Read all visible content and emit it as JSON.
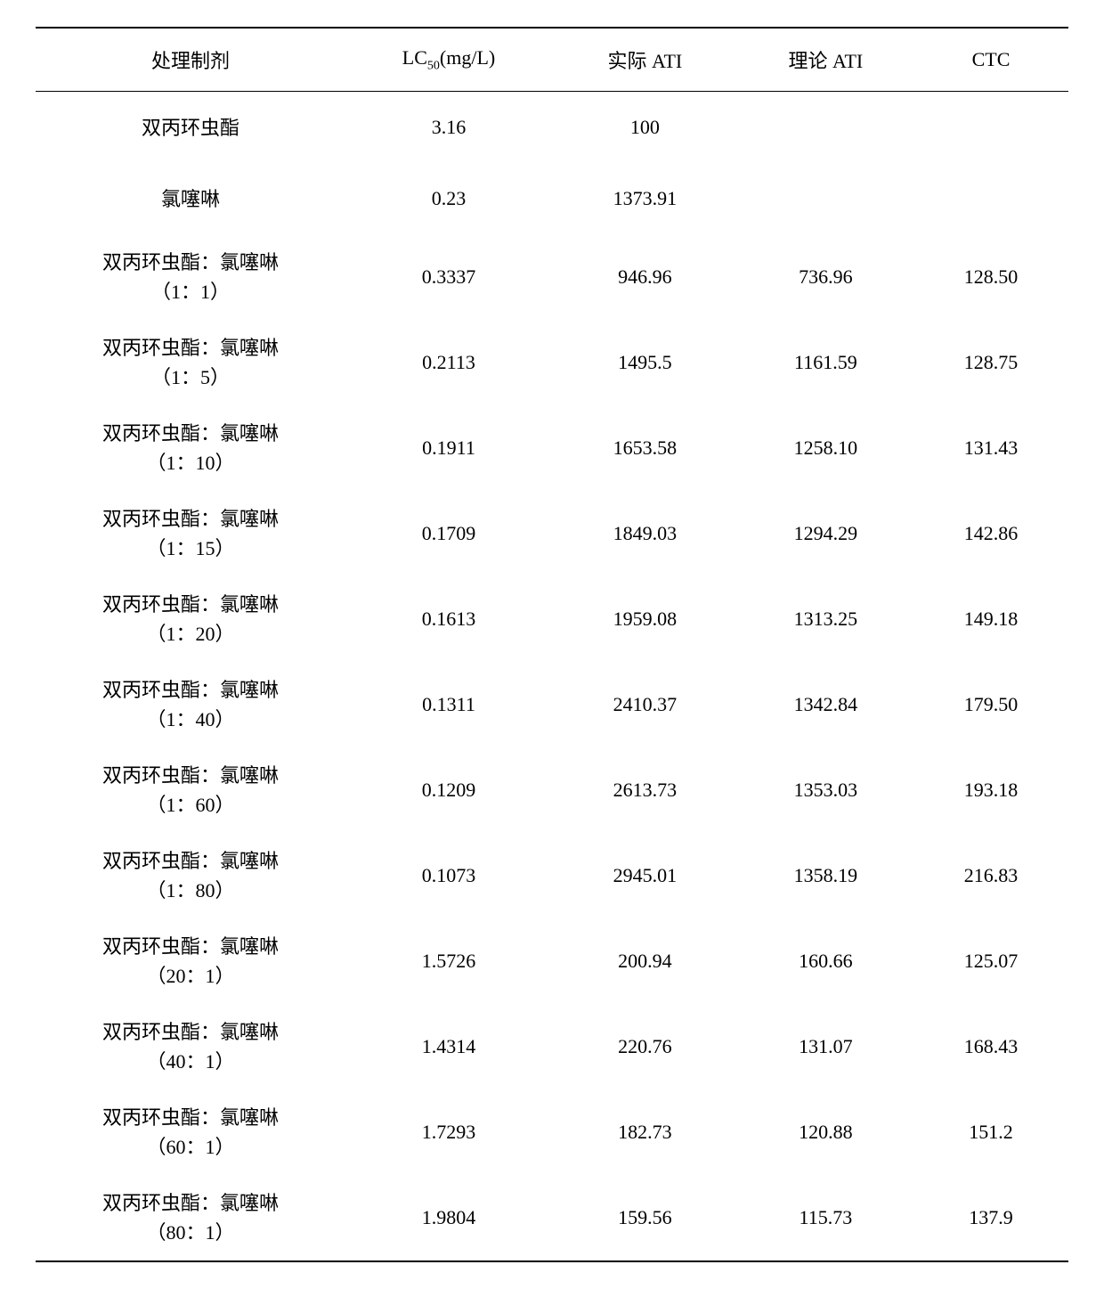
{
  "columns": {
    "agent": "处理制剂",
    "lc50_prefix": "LC",
    "lc50_sub": "50",
    "lc50_suffix": "(mg/L)",
    "actual_ati": "实际 ATI",
    "theoretical_ati": "理论 ATI",
    "ctc": "CTC"
  },
  "rows": [
    {
      "agent_line1": "双丙环虫酯",
      "agent_line2": "",
      "lc50": "3.16",
      "actual_ati": "100",
      "theoretical_ati": "",
      "ctc": "",
      "single": true
    },
    {
      "agent_line1": "氯噻啉",
      "agent_line2": "",
      "lc50": "0.23",
      "actual_ati": "1373.91",
      "theoretical_ati": "",
      "ctc": "",
      "single": true
    },
    {
      "agent_line1": "双丙环虫酯：氯噻啉",
      "agent_line2": "（1：1）",
      "lc50": "0.3337",
      "actual_ati": "946.96",
      "theoretical_ati": "736.96",
      "ctc": "128.50",
      "single": false
    },
    {
      "agent_line1": "双丙环虫酯：氯噻啉",
      "agent_line2": "（1：5）",
      "lc50": "0.2113",
      "actual_ati": "1495.5",
      "theoretical_ati": "1161.59",
      "ctc": "128.75",
      "single": false
    },
    {
      "agent_line1": "双丙环虫酯：氯噻啉",
      "agent_line2": "（1：10）",
      "lc50": "0.1911",
      "actual_ati": "1653.58",
      "theoretical_ati": "1258.10",
      "ctc": "131.43",
      "single": false
    },
    {
      "agent_line1": "双丙环虫酯：氯噻啉",
      "agent_line2": "（1：15）",
      "lc50": "0.1709",
      "actual_ati": "1849.03",
      "theoretical_ati": "1294.29",
      "ctc": "142.86",
      "single": false
    },
    {
      "agent_line1": "双丙环虫酯：氯噻啉",
      "agent_line2": "（1：20）",
      "lc50": "0.1613",
      "actual_ati": "1959.08",
      "theoretical_ati": "1313.25",
      "ctc": "149.18",
      "single": false
    },
    {
      "agent_line1": "双丙环虫酯：氯噻啉",
      "agent_line2": "（1：40）",
      "lc50": "0.1311",
      "actual_ati": "2410.37",
      "theoretical_ati": "1342.84",
      "ctc": "179.50",
      "single": false
    },
    {
      "agent_line1": "双丙环虫酯：氯噻啉",
      "agent_line2": "（1：60）",
      "lc50": "0.1209",
      "actual_ati": "2613.73",
      "theoretical_ati": "1353.03",
      "ctc": "193.18",
      "single": false
    },
    {
      "agent_line1": "双丙环虫酯：氯噻啉",
      "agent_line2": "（1：80）",
      "lc50": "0.1073",
      "actual_ati": "2945.01",
      "theoretical_ati": "1358.19",
      "ctc": "216.83",
      "single": false
    },
    {
      "agent_line1": "双丙环虫酯：氯噻啉",
      "agent_line2": "（20：1）",
      "lc50": "1.5726",
      "actual_ati": "200.94",
      "theoretical_ati": "160.66",
      "ctc": "125.07",
      "single": false
    },
    {
      "agent_line1": "双丙环虫酯：氯噻啉",
      "agent_line2": "（40：1）",
      "lc50": "1.4314",
      "actual_ati": "220.76",
      "theoretical_ati": "131.07",
      "ctc": "168.43",
      "single": false
    },
    {
      "agent_line1": "双丙环虫酯：氯噻啉",
      "agent_line2": "（60：1）",
      "lc50": "1.7293",
      "actual_ati": "182.73",
      "theoretical_ati": "120.88",
      "ctc": "151.2",
      "single": false
    },
    {
      "agent_line1": "双丙环虫酯：氯噻啉",
      "agent_line2": "（80：1）",
      "lc50": "1.9804",
      "actual_ati": "159.56",
      "theoretical_ati": "115.73",
      "ctc": "137.9",
      "single": false
    }
  ]
}
